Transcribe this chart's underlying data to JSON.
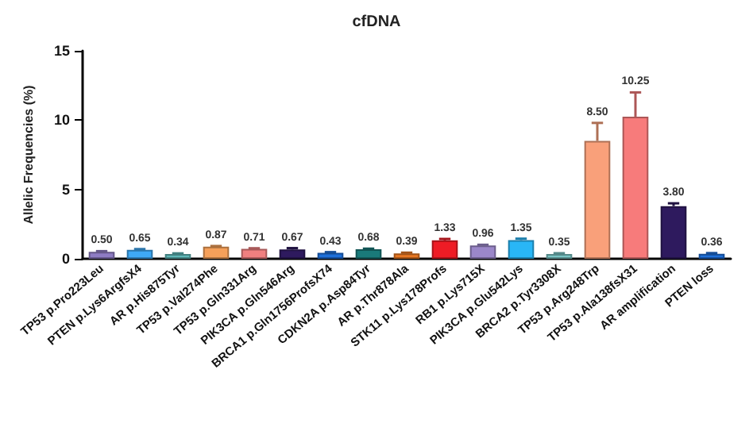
{
  "chart_data": {
    "type": "bar",
    "title": "cfDNA",
    "ylabel": "Allelic Frequencies (%)",
    "categories": [
      "TP53 p.Pro223Leu",
      "PTEN p.Lys6ArgfsX4",
      "AR p.His875Tyr",
      "TP53 p.Val274Phe",
      "TP53 p.Gln331Arg",
      "PIK3CA p.Gln546Arg",
      "BRCA1 p.Gln1756ProfsX74",
      "CDKN2A p.Asp84Tyr",
      "AR p.Thr878Ala",
      "STK11 p.Lys178Profs",
      "RB1 p.Lys715X",
      "PIK3CA p.Glu542Lys",
      "BRCA2 p.Tyr3308X",
      "TP53 p.Arg248Trp",
      "TP53 p.Ala138fsX31",
      "AR amplification",
      "PTEN loss"
    ],
    "values": [
      0.5,
      0.65,
      0.34,
      0.87,
      0.71,
      0.67,
      0.43,
      0.68,
      0.39,
      1.33,
      0.96,
      1.35,
      0.35,
      8.5,
      10.25,
      3.8,
      0.36
    ],
    "errors": [
      0.05,
      0.05,
      0.05,
      0.05,
      0.05,
      0.1,
      0.05,
      0.05,
      0.05,
      0.1,
      0.05,
      0.1,
      0.05,
      1.3,
      1.75,
      0.2,
      0.05
    ],
    "colors": [
      "#8e7cc3",
      "#3fa9f5",
      "#5fb8b8",
      "#f5a05a",
      "#f08080",
      "#2e1a5e",
      "#1e6fd9",
      "#1a7a7a",
      "#e87722",
      "#ee1c25",
      "#9b87c9",
      "#29b6f6",
      "#7ac5c5",
      "#f9a07a",
      "#f77b7b",
      "#2e1a5e",
      "#1e6fd9"
    ],
    "value_labels": [
      "0.50",
      "0.65",
      "0.34",
      "0.87",
      "0.71",
      "0.67",
      "0.43",
      "0.68",
      "0.39",
      "1.33",
      "0.96",
      "1.35",
      "0.35",
      "8.50",
      "10.25",
      "3.80",
      "0.36"
    ],
    "ylim": [
      0,
      15
    ],
    "yticks": [
      0,
      5,
      10,
      15
    ],
    "grid": false
  }
}
